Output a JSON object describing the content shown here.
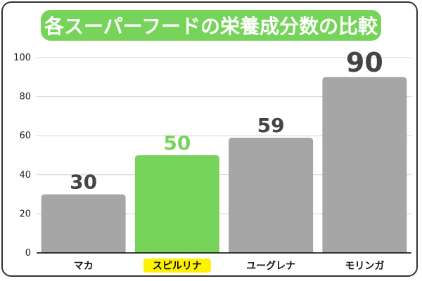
{
  "colors": {
    "title_bg": "#77D45A",
    "title_text": "#FFFFFF",
    "bar_default": "#A6A6A6",
    "bar_highlight": "#77D45A",
    "label_highlight_bg": "#FFF200",
    "value_default": "#444444",
    "value_highlight": "#77D45A",
    "grid": "#D0D0D0",
    "axis": "#000000"
  },
  "chart_data": {
    "type": "bar",
    "title": "各スーパーフードの栄養成分数の比較",
    "xlabel": "",
    "ylabel": "",
    "categories": [
      "マカ",
      "スピルリナ",
      "ユーグレナ",
      "モリンガ"
    ],
    "values": [
      30,
      50,
      59,
      90
    ],
    "value_labels": [
      "30",
      "50",
      "59",
      "90"
    ],
    "highlight_index": 1,
    "ylim": [
      0,
      100
    ],
    "yticks": [
      0,
      20,
      40,
      60,
      80,
      100
    ],
    "ytick_labels": [
      "0",
      "20",
      "40",
      "60",
      "80",
      "100"
    ],
    "grid": true,
    "legend": "none"
  }
}
